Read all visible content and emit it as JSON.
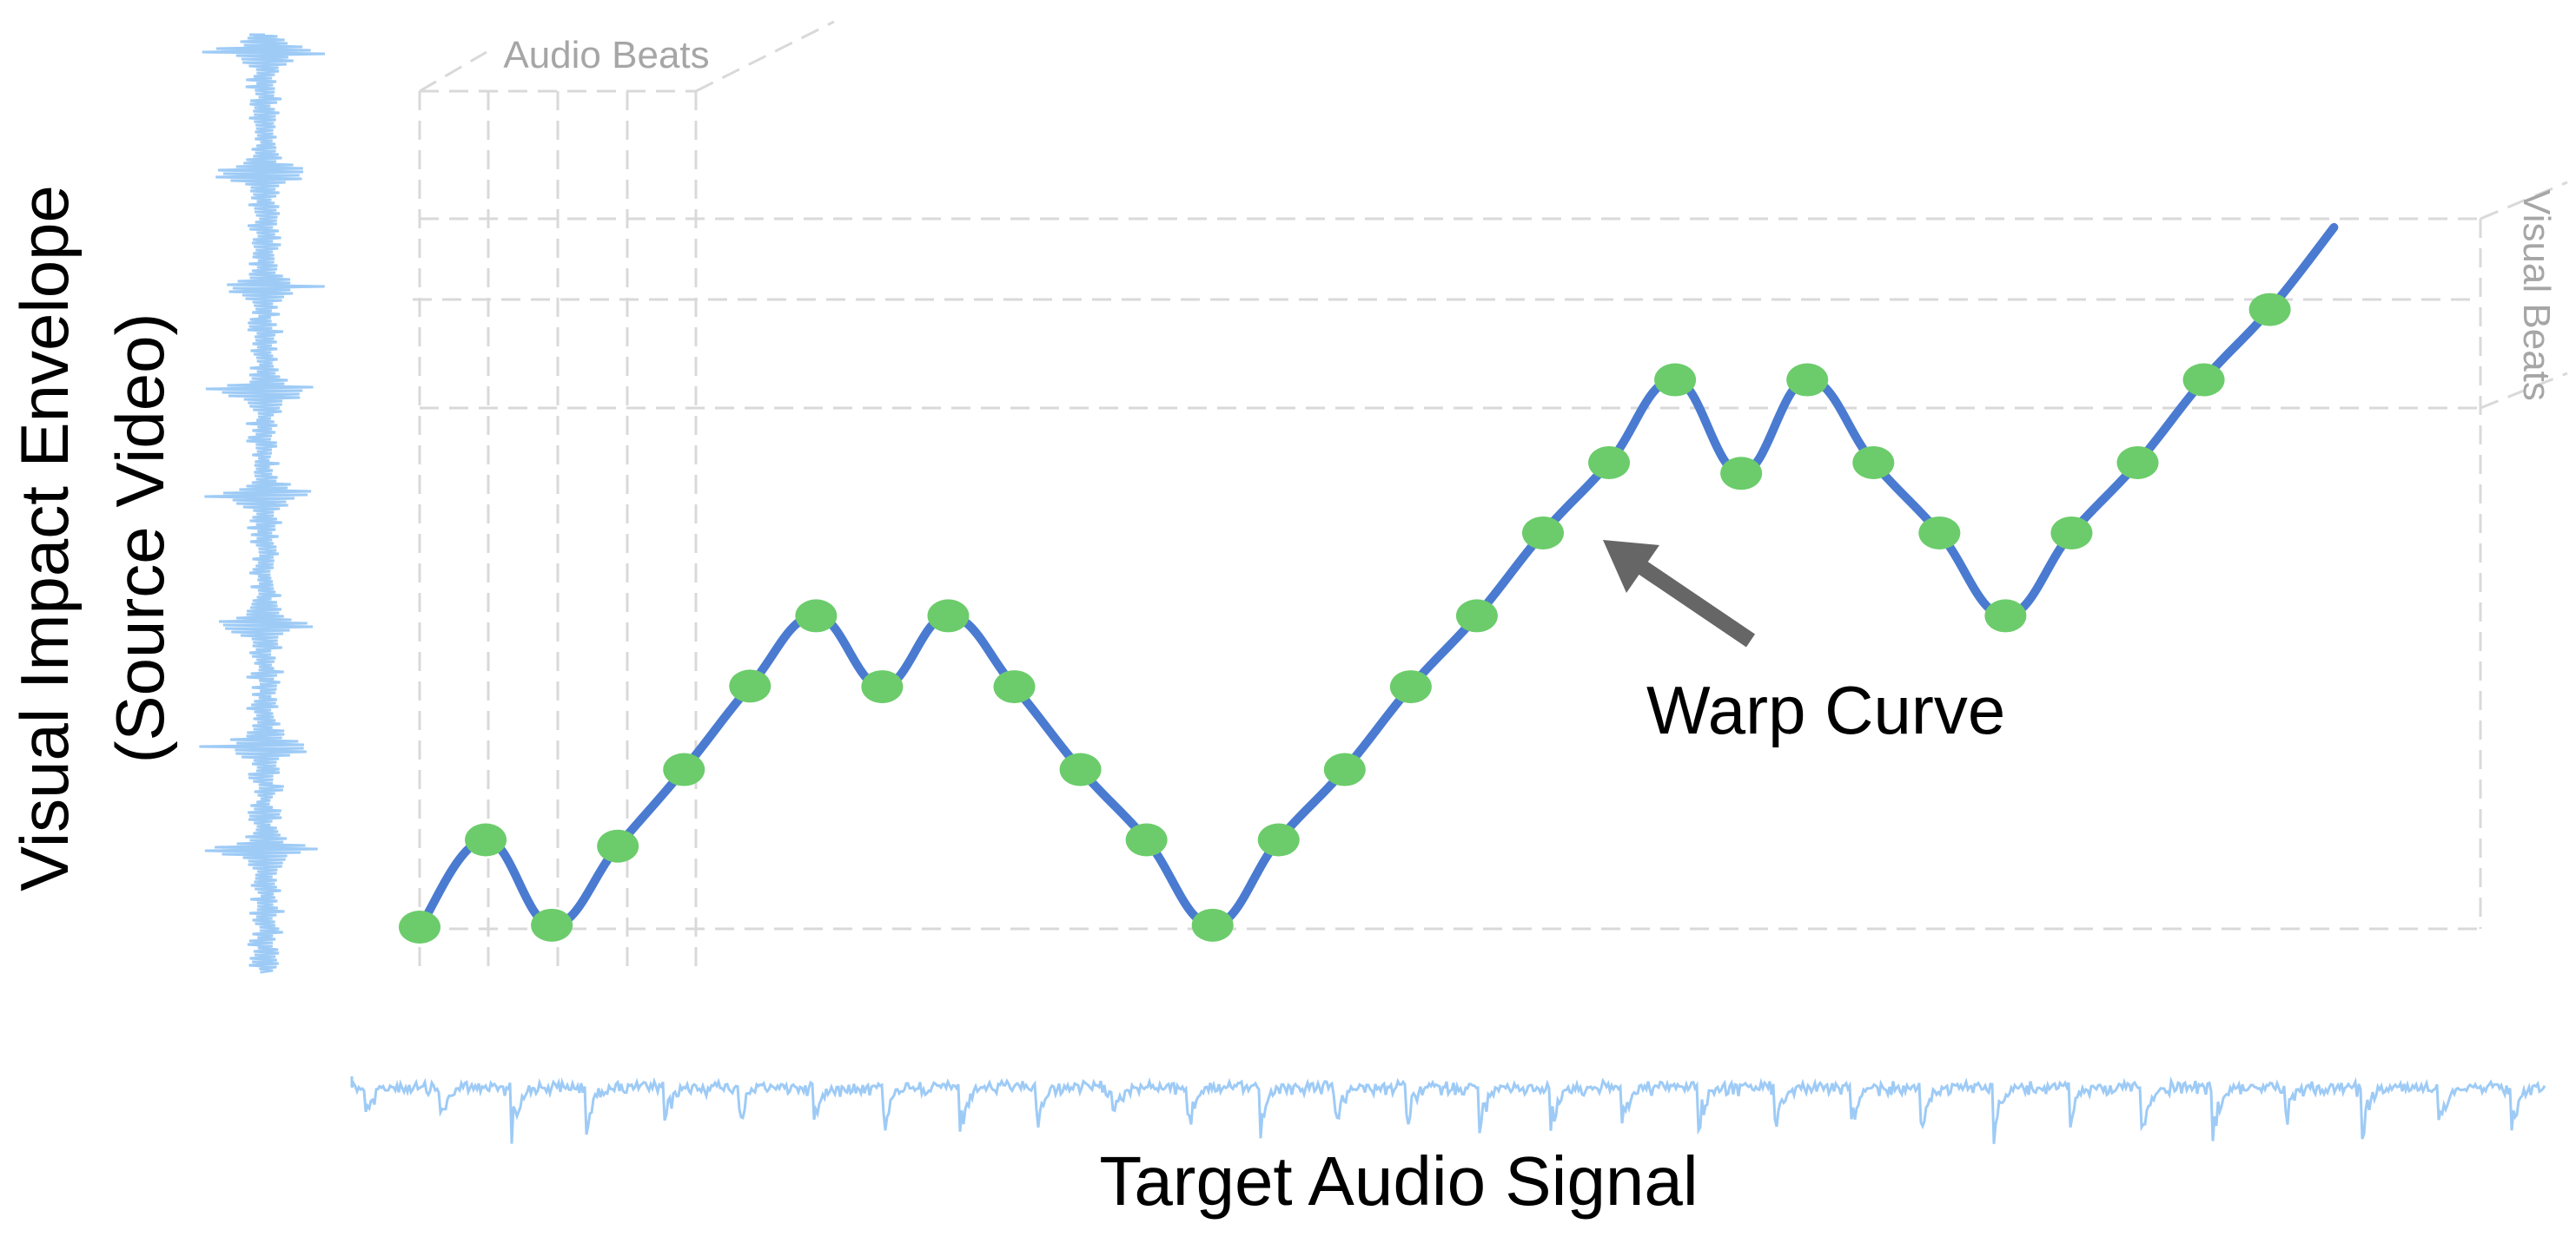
{
  "labels": {
    "y_axis_line1": "Visual Impact Envelope",
    "y_axis_line2": "(Source Video)",
    "x_axis": "Target Audio Signal",
    "audio_beats": "Audio Beats",
    "visual_beats": "Visual Beats",
    "warp_curve": "Warp Curve"
  },
  "colors": {
    "waveform": "#9ecbf6",
    "warp_curve": "#4a7bd1",
    "beat_marker": "#6ccc6b",
    "grid": "#d9d9d9",
    "annotation_arrow": "#666666"
  },
  "warp_curve": {
    "description_free": true,
    "points": [
      [
        0.0,
        0.0
      ],
      [
        0.034,
        0.139
      ],
      [
        0.068,
        0.003
      ],
      [
        0.102,
        0.129
      ],
      [
        0.136,
        0.251
      ],
      [
        0.17,
        0.384
      ],
      [
        0.204,
        0.496
      ],
      [
        0.238,
        0.383
      ],
      [
        0.272,
        0.496
      ],
      [
        0.306,
        0.383
      ],
      [
        0.34,
        0.251
      ],
      [
        0.374,
        0.139
      ],
      [
        0.408,
        0.003
      ],
      [
        0.442,
        0.139
      ],
      [
        0.476,
        0.251
      ],
      [
        0.51,
        0.383
      ],
      [
        0.544,
        0.496
      ],
      [
        0.578,
        0.628
      ],
      [
        0.612,
        0.74
      ],
      [
        0.646,
        0.872
      ],
      [
        0.68,
        0.723
      ],
      [
        0.714,
        0.872
      ],
      [
        0.748,
        0.74
      ],
      [
        0.782,
        0.628
      ],
      [
        0.816,
        0.496
      ],
      [
        0.85,
        0.628
      ],
      [
        0.884,
        0.74
      ],
      [
        0.918,
        0.872
      ],
      [
        0.952,
        0.984
      ]
    ],
    "tail": [
      0.985,
      1.115
    ]
  }
}
